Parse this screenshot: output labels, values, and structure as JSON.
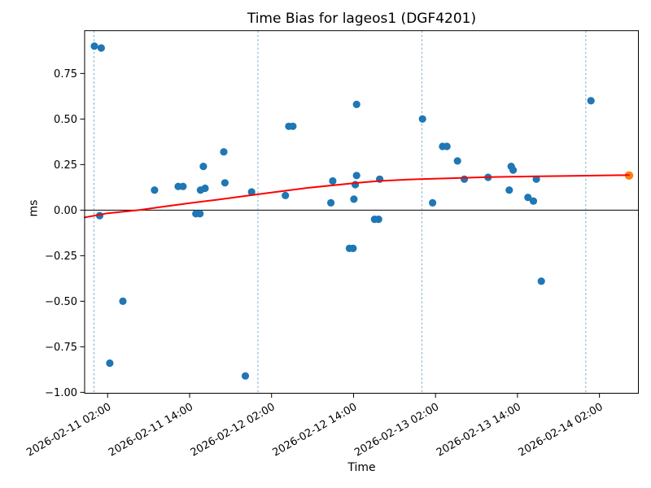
{
  "title": "Time Bias for lageos1 (DGF4201)",
  "axes": {
    "xlabel": "Time",
    "ylabel": "ms"
  },
  "colors": {
    "observation_point": "#1f77b4",
    "latest_point": "#ff7f0e",
    "fit_curve": "#ff0000",
    "day_gridline": "#1f77b4",
    "axis": "#000000",
    "background": "#ffffff"
  },
  "chart_data": {
    "type": "scatter",
    "title": "Time Bias for lageos1 (DGF4201)",
    "xlabel": "Time",
    "ylabel": "ms",
    "x_start": "2026-02-10 22:38",
    "x_end": "2026-02-14 07:42",
    "ylim": [
      -1.005,
      0.985
    ],
    "grid": "vertical dashed lines at day boundaries only",
    "legend": "none",
    "yticks": [
      {
        "value": -1.0,
        "label": "−1.00"
      },
      {
        "value": -0.75,
        "label": "−0.75"
      },
      {
        "value": -0.5,
        "label": "−0.50"
      },
      {
        "value": -0.25,
        "label": "−0.25"
      },
      {
        "value": 0.0,
        "label": "0.00"
      },
      {
        "value": 0.25,
        "label": "0.25"
      },
      {
        "value": 0.5,
        "label": "0.50"
      },
      {
        "value": 0.75,
        "label": "0.75"
      }
    ],
    "xticks": [
      {
        "time": "2026-02-11 02:00",
        "label": "2026-02-11 02:00"
      },
      {
        "time": "2026-02-11 14:00",
        "label": "2026-02-11 14:00"
      },
      {
        "time": "2026-02-12 02:00",
        "label": "2026-02-12 02:00"
      },
      {
        "time": "2026-02-12 14:00",
        "label": "2026-02-12 14:00"
      },
      {
        "time": "2026-02-13 02:00",
        "label": "2026-02-13 02:00"
      },
      {
        "time": "2026-02-13 14:00",
        "label": "2026-02-13 14:00"
      },
      {
        "time": "2026-02-14 02:00",
        "label": "2026-02-14 02:00"
      }
    ],
    "day_boundary_vlines": [
      "2026-02-11 00:00",
      "2026-02-12 00:00",
      "2026-02-13 00:00",
      "2026-02-14 00:00"
    ],
    "zero_line": 0.0,
    "series": [
      {
        "name": "time-bias-observations",
        "type": "scatter",
        "color": "#1f77b4",
        "marker_radius": 4.6,
        "points": [
          [
            "2026-02-11 00:04",
            0.9
          ],
          [
            "2026-02-11 01:04",
            0.89
          ],
          [
            "2026-02-11 00:50",
            -0.03
          ],
          [
            "2026-02-11 02:19",
            -0.84
          ],
          [
            "2026-02-11 04:14",
            -0.5
          ],
          [
            "2026-02-11 08:52",
            0.11
          ],
          [
            "2026-02-11 12:20",
            0.13
          ],
          [
            "2026-02-11 13:02",
            0.13
          ],
          [
            "2026-02-11 14:55",
            -0.02
          ],
          [
            "2026-02-11 15:31",
            -0.02
          ],
          [
            "2026-02-11 15:36",
            0.11
          ],
          [
            "2026-02-11 16:16",
            0.12
          ],
          [
            "2026-02-11 16:01",
            0.24
          ],
          [
            "2026-02-11 19:00",
            0.32
          ],
          [
            "2026-02-11 19:10",
            0.15
          ],
          [
            "2026-02-11 22:10",
            -0.91
          ],
          [
            "2026-02-11 23:05",
            0.1
          ],
          [
            "2026-02-12 04:01",
            0.08
          ],
          [
            "2026-02-12 04:31",
            0.46
          ],
          [
            "2026-02-12 05:07",
            0.46
          ],
          [
            "2026-02-12 10:41",
            0.04
          ],
          [
            "2026-02-12 10:57",
            0.16
          ],
          [
            "2026-02-12 13:24",
            -0.21
          ],
          [
            "2026-02-12 13:56",
            -0.21
          ],
          [
            "2026-02-12 14:03",
            0.06
          ],
          [
            "2026-02-12 14:15",
            0.14
          ],
          [
            "2026-02-12 14:27",
            0.19
          ],
          [
            "2026-02-12 14:27",
            0.58
          ],
          [
            "2026-02-12 17:05",
            -0.05
          ],
          [
            "2026-02-12 17:40",
            -0.05
          ],
          [
            "2026-02-12 17:50",
            0.17
          ],
          [
            "2026-02-13 00:06",
            0.5
          ],
          [
            "2026-02-13 01:34",
            0.04
          ],
          [
            "2026-02-13 03:02",
            0.35
          ],
          [
            "2026-02-13 03:40",
            0.35
          ],
          [
            "2026-02-13 05:13",
            0.27
          ],
          [
            "2026-02-13 06:13",
            0.17
          ],
          [
            "2026-02-13 09:42",
            0.18
          ],
          [
            "2026-02-13 12:48",
            0.11
          ],
          [
            "2026-02-13 13:05",
            0.24
          ],
          [
            "2026-02-13 13:22",
            0.22
          ],
          [
            "2026-02-13 15:32",
            0.07
          ],
          [
            "2026-02-13 16:20",
            0.05
          ],
          [
            "2026-02-13 16:46",
            0.17
          ],
          [
            "2026-02-13 17:29",
            -0.39
          ],
          [
            "2026-02-14 00:45",
            0.6
          ]
        ]
      },
      {
        "name": "latest-observation",
        "type": "scatter",
        "color": "#ff7f0e",
        "marker_radius": 5.2,
        "points": [
          [
            "2026-02-14 06:20",
            0.19
          ]
        ]
      },
      {
        "name": "fit-curve",
        "type": "line",
        "color": "#ff0000",
        "points": [
          [
            "2026-02-10 22:38",
            -0.04
          ],
          [
            "2026-02-11 02:00",
            -0.017
          ],
          [
            "2026-02-11 06:30",
            0.0
          ],
          [
            "2026-02-11 10:00",
            0.018
          ],
          [
            "2026-02-11 14:00",
            0.038
          ],
          [
            "2026-02-11 18:00",
            0.057
          ],
          [
            "2026-02-11 22:00",
            0.077
          ],
          [
            "2026-02-12 01:30",
            0.094
          ],
          [
            "2026-02-12 07:30",
            0.123
          ],
          [
            "2026-02-12 14:36",
            0.15
          ],
          [
            "2026-02-12 17:48",
            0.16
          ],
          [
            "2026-02-12 22:00",
            0.168
          ],
          [
            "2026-02-13 03:48",
            0.175
          ],
          [
            "2026-02-13 09:42",
            0.181
          ],
          [
            "2026-02-13 16:00",
            0.185
          ],
          [
            "2026-02-13 22:00",
            0.188
          ],
          [
            "2026-02-14 06:20",
            0.192
          ]
        ]
      }
    ]
  }
}
